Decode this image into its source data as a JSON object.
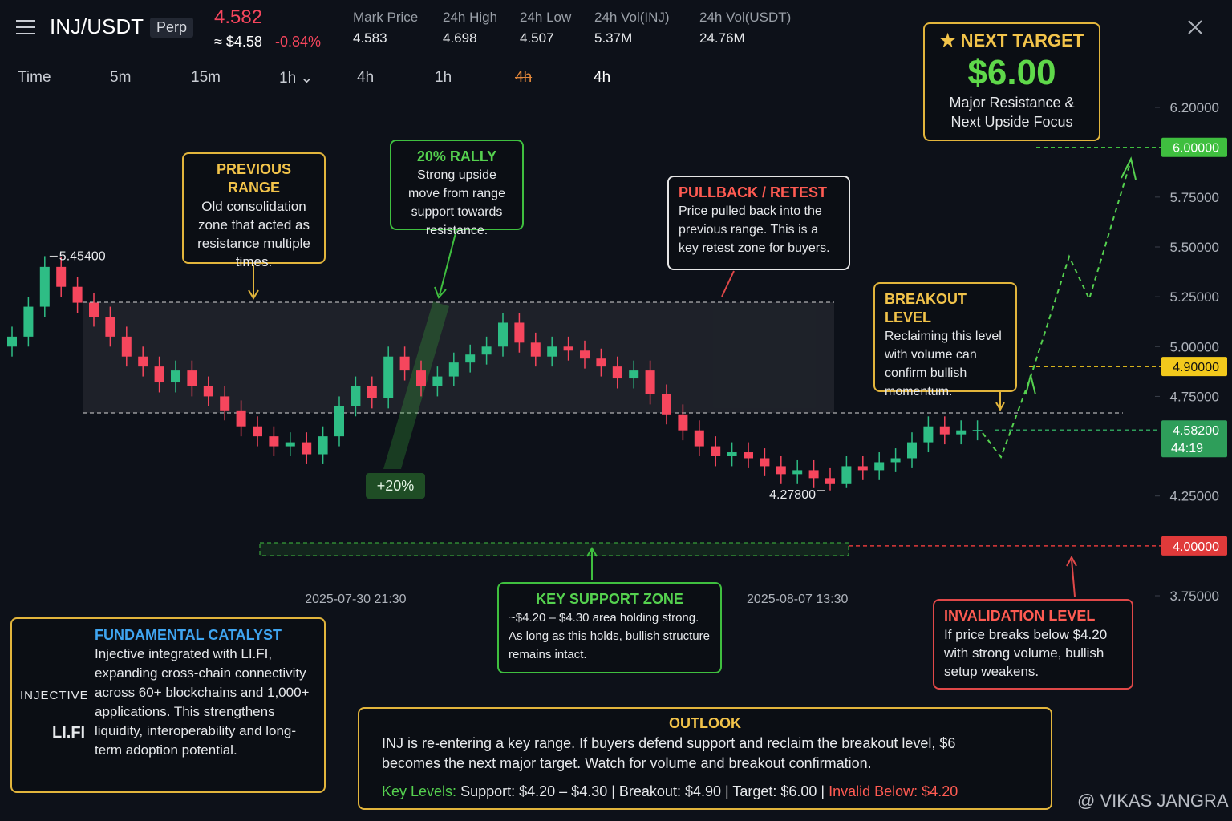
{
  "header": {
    "symbol": "INJ/USDT",
    "contract": "Perp",
    "price": "4.582",
    "usd_price": "≈ $4.58",
    "change": "-0.84%",
    "stats": [
      {
        "label": "Mark Price",
        "value": "4.583"
      },
      {
        "label": "24h High",
        "value": "4.698"
      },
      {
        "label": "24h Low",
        "value": "4.507"
      },
      {
        "label": "24h Vol(INJ)",
        "value": "5.37M"
      },
      {
        "label": "24h Vol(USDT)",
        "value": "24.76M"
      }
    ]
  },
  "timeframes": [
    "Time",
    "5m",
    "15m",
    "1h ⌄",
    "4h",
    "1h",
    "4h",
    "4h"
  ],
  "chart_data": {
    "type": "candlestick",
    "categories": [
      null,
      null,
      null,
      null,
      null,
      null,
      null,
      null,
      null,
      null,
      null,
      null,
      null,
      null,
      null,
      null,
      null,
      null,
      null,
      null,
      null,
      "2025-07-30 21:30",
      null,
      null,
      null,
      null,
      null,
      null,
      null,
      null,
      null,
      null,
      null,
      null,
      null,
      null,
      null,
      null,
      null,
      null,
      null,
      null,
      null,
      null,
      null,
      null,
      null,
      null,
      "2025-08-07 13:30",
      null,
      null,
      null,
      null,
      null,
      null,
      null,
      null,
      null,
      null,
      null
    ],
    "open": [
      5.0,
      5.05,
      5.2,
      5.4,
      5.3,
      5.22,
      5.15,
      5.05,
      4.95,
      4.9,
      4.82,
      4.88,
      4.8,
      4.75,
      4.68,
      4.6,
      4.55,
      4.5,
      4.52,
      4.46,
      4.55,
      4.7,
      4.8,
      4.74,
      4.95,
      4.88,
      4.8,
      4.85,
      4.92,
      4.96,
      5.0,
      5.12,
      5.02,
      4.95,
      5.0,
      4.98,
      4.94,
      4.9,
      4.84,
      4.88,
      4.76,
      4.66,
      4.58,
      4.5,
      4.45,
      4.47,
      4.44,
      4.4,
      4.36,
      4.38,
      4.34,
      4.31,
      4.4,
      4.38,
      4.42,
      4.44,
      4.52,
      4.6,
      4.56,
      4.58
    ],
    "high": [
      5.1,
      5.25,
      5.454,
      5.45,
      5.35,
      5.27,
      5.2,
      5.1,
      5.0,
      4.95,
      4.93,
      4.93,
      4.85,
      4.8,
      4.73,
      4.65,
      4.6,
      4.57,
      4.57,
      4.6,
      4.75,
      4.85,
      4.85,
      5.0,
      5.0,
      4.93,
      4.9,
      4.97,
      5.01,
      5.05,
      5.17,
      5.17,
      5.07,
      5.05,
      5.05,
      5.03,
      4.99,
      4.95,
      4.93,
      4.93,
      4.81,
      4.71,
      4.63,
      4.55,
      4.52,
      4.52,
      4.49,
      4.45,
      4.43,
      4.43,
      4.39,
      4.45,
      4.45,
      4.47,
      4.49,
      4.57,
      4.65,
      4.65,
      4.63,
      4.63
    ],
    "low": [
      4.95,
      5.0,
      5.15,
      5.25,
      5.17,
      5.1,
      5.0,
      4.9,
      4.85,
      4.77,
      4.77,
      4.75,
      4.7,
      4.63,
      4.55,
      4.5,
      4.45,
      4.45,
      4.41,
      4.41,
      4.5,
      4.65,
      4.69,
      4.69,
      4.83,
      4.75,
      4.75,
      4.8,
      4.87,
      4.91,
      4.95,
      4.97,
      4.9,
      4.9,
      4.93,
      4.89,
      4.85,
      4.79,
      4.79,
      4.71,
      4.61,
      4.53,
      4.45,
      4.4,
      4.4,
      4.39,
      4.35,
      4.31,
      4.31,
      4.29,
      4.278,
      4.29,
      4.33,
      4.33,
      4.37,
      4.39,
      4.47,
      4.51,
      4.51,
      4.53
    ],
    "close": [
      5.05,
      5.2,
      5.4,
      5.3,
      5.22,
      5.15,
      5.05,
      4.95,
      4.9,
      4.82,
      4.88,
      4.8,
      4.75,
      4.68,
      4.6,
      4.55,
      4.5,
      4.52,
      4.46,
      4.55,
      4.7,
      4.8,
      4.74,
      4.95,
      4.88,
      4.8,
      4.85,
      4.92,
      4.96,
      5.0,
      5.12,
      5.02,
      4.95,
      5.0,
      4.98,
      4.94,
      4.9,
      4.84,
      4.88,
      4.76,
      4.66,
      4.58,
      4.5,
      4.45,
      4.47,
      4.44,
      4.4,
      4.36,
      4.38,
      4.34,
      4.31,
      4.4,
      4.38,
      4.42,
      4.44,
      4.52,
      4.6,
      4.56,
      4.58,
      4.582
    ],
    "up_color": "#2ebd85",
    "down_color": "#f6465d",
    "ylim": [
      3.75,
      6.2
    ],
    "yticks": [
      {
        "value": 6.2,
        "label": "6.20000"
      },
      {
        "value": 5.75,
        "label": "5.75000"
      },
      {
        "value": 5.5,
        "label": "5.50000"
      },
      {
        "value": 5.25,
        "label": "5.25000"
      },
      {
        "value": 5.0,
        "label": "5.00000"
      },
      {
        "value": 4.75,
        "label": "4.75000"
      },
      {
        "value": 4.25,
        "label": "4.25000"
      },
      {
        "value": 3.75,
        "label": "3.75000"
      }
    ],
    "levels": [
      {
        "value": 6.0,
        "label": "6.00000",
        "color": "#3fbf3f"
      },
      {
        "value": 4.9,
        "label": "4.90000",
        "color": "#f2c91c"
      },
      {
        "value": 4.582,
        "label": "4.58200",
        "countdown": "44:19",
        "color": "#2e9e5a"
      },
      {
        "value": 4.0,
        "label": "4.00000",
        "color": "#e03a3a"
      }
    ],
    "annotations": [
      {
        "index": 2,
        "value": 5.454,
        "label": "5.45400"
      },
      {
        "index": 50,
        "value": 4.278,
        "label": "4.27800"
      }
    ]
  },
  "badge": "+20%",
  "target": {
    "title": "★ NEXT TARGET",
    "price": "$6.00",
    "text": "Major Resistance & Next Upside Focus"
  },
  "notes": [
    {
      "title": "PREVIOUS RANGE",
      "text": "Old consolidation zone that acted as resistance multiple times."
    },
    {
      "title": "20% RALLY",
      "text": "Strong upside move from range support towards resistance."
    },
    {
      "title": "PULLBACK / RETEST",
      "text": "Price pulled back into the previous range. This is a key retest zone for buyers."
    },
    {
      "title": "BREAKOUT LEVEL",
      "text": "Reclaiming this level with volume can confirm bullish momentum."
    },
    {
      "title": "KEY SUPPORT ZONE",
      "text": "~$4.20 – $4.30 area holding strong. As long as this holds, bullish structure remains intact."
    },
    {
      "title": "INVALIDATION LEVEL",
      "text": "If price breaks below $4.20 with strong volume, bullish setup weakens."
    }
  ],
  "catalyst": {
    "title": "FUNDAMENTAL CATALYST",
    "text": "Injective integrated with LI.FI, expanding cross-chain connectivity across 60+ blockchains and 1,000+ applications. This strengthens liquidity, interoperability and long-term adoption potential.",
    "logos": [
      "INJECTIVE",
      "LI.FI"
    ]
  },
  "outlook": {
    "title": "OUTLOOK",
    "text": "INJ is re-entering a key range. If buyers defend support and reclaim the breakout level, $6 becomes the next major target. Watch for volume and breakout confirmation.",
    "key_levels": [
      "Key Levels:",
      "Support: $4.20 – $4.30 | Breakout: $4.90 | Target: $6.00 |",
      "Invalid Below: $4.20"
    ]
  },
  "watermark": "@ VIKAS JANGRA"
}
